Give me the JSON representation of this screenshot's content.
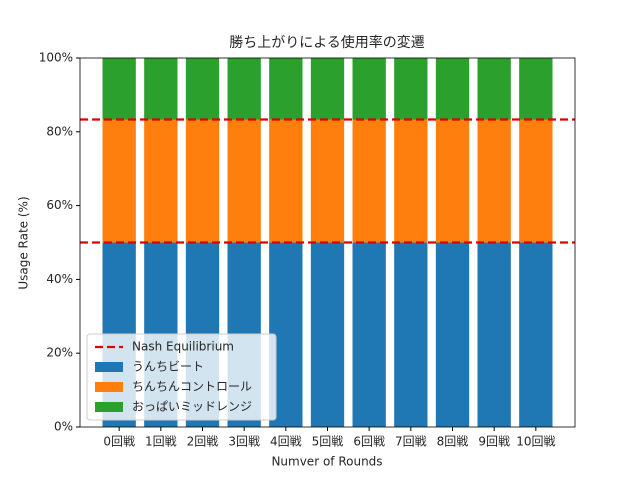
{
  "chart_data": {
    "type": "stacked_bar",
    "title": "勝ち上がりによる使用率の変遷",
    "xlabel": "Numver of Rounds",
    "ylabel": "Usage Rate (%)",
    "categories": [
      "0回戦",
      "1回戦",
      "2回戦",
      "3回戦",
      "4回戦",
      "5回戦",
      "6回戦",
      "7回戦",
      "8回戦",
      "9回戦",
      "10回戦"
    ],
    "series": [
      {
        "name": "うんちビート",
        "color": "#1f77b4",
        "values": [
          50,
          50,
          50,
          50,
          50,
          50,
          50,
          50,
          50,
          50,
          50
        ]
      },
      {
        "name": "ちんちんコントロール",
        "color": "#ff7f0e",
        "values": [
          33.33,
          33.33,
          33.33,
          33.33,
          33.33,
          33.33,
          33.33,
          33.33,
          33.33,
          33.33,
          33.33
        ]
      },
      {
        "name": "おっぱいミッドレンジ",
        "color": "#2ca02c",
        "values": [
          16.67,
          16.67,
          16.67,
          16.67,
          16.67,
          16.67,
          16.67,
          16.67,
          16.67,
          16.67,
          16.67
        ]
      }
    ],
    "reference_line": {
      "name": "Nash Equilibrium",
      "color": "#e00000",
      "values": [
        50,
        83.33
      ]
    },
    "ylim": [
      0,
      100
    ],
    "yticks": [
      {
        "value": 0,
        "label": "0%"
      },
      {
        "value": 20,
        "label": "20%"
      },
      {
        "value": 40,
        "label": "40%"
      },
      {
        "value": 60,
        "label": "60%"
      },
      {
        "value": 80,
        "label": "80%"
      },
      {
        "value": 100,
        "label": "100%"
      }
    ],
    "legend": "lower left"
  }
}
